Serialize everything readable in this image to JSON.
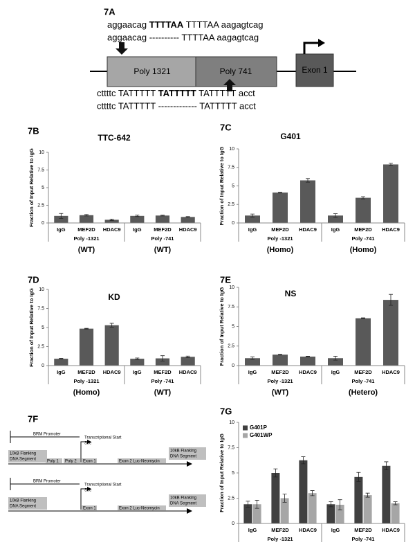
{
  "panel_a": {
    "label": "7A",
    "seq_top_1": [
      "aggaacag",
      "TTTTAA",
      "TTTTAA aagagtcag"
    ],
    "seq_top_2": "aggaacag ---------- TTTTAA aagagtcag",
    "boxes": [
      "Poly 1321",
      "Poly 741",
      "Exon 1"
    ],
    "seq_bottom_1": [
      "cttttc TATTTTT",
      "TATTTTT",
      "TATTTTT acct"
    ],
    "seq_bottom_2": "cttttc TATTTTT ------------- TATTTTT acct"
  },
  "panel_f": {
    "label": "7F",
    "constructs": [
      {
        "promoter": "BRM Promoter",
        "tss": [
          "Transcriptional Start",
          "Site"
        ],
        "left_flank": [
          "10kB Flanking",
          "DNA Segment"
        ],
        "segments": [
          "Poly 1",
          "Poly 2",
          "Exon 1",
          "Exon 2  Luc-Neomycin"
        ],
        "right_flank": [
          "10kB Flanking",
          "DNA Segment"
        ]
      },
      {
        "promoter": "BRM Promoter",
        "tss": [
          "Transcriptional Start",
          "Site"
        ],
        "left_flank": [
          "10kB Flanking",
          "DNA Segment"
        ],
        "segments": [
          "Exon 1",
          "Exon 2  Luc-Neomycin"
        ],
        "right_flank": [
          "10kB Flanking",
          "DNA Segment"
        ]
      }
    ]
  },
  "chart_data": [
    {
      "type": "bar",
      "panel": "7B",
      "title": "TTC-642",
      "ylabel": "Fraction of Input Relative to IgG",
      "categories": [
        "IgG",
        "MEF2D",
        "HDAC9",
        "IgG",
        "MEF2D",
        "HDAC9"
      ],
      "group_labels": [
        "Poly -1321",
        "Poly -741"
      ],
      "group_notes": [
        "(WT)",
        "(WT)"
      ],
      "series": [
        {
          "color": "#595959",
          "values": [
            1.0,
            1.1,
            0.45,
            1.0,
            1.05,
            0.85
          ],
          "errors": [
            0.35,
            0.1,
            0.1,
            0.1,
            0.05,
            0.05
          ]
        }
      ],
      "ylim": [
        0,
        10
      ],
      "yticks": [
        0,
        2.5,
        5,
        7.5,
        10
      ]
    },
    {
      "type": "bar",
      "panel": "7C",
      "title": "G401",
      "ylabel": "Fraction of Input Relative to IgG",
      "categories": [
        "IgG",
        "MEF2D",
        "HDAC9",
        "IgG",
        "MEF2D",
        "HDAC9"
      ],
      "group_labels": [
        "Poly -1321",
        "Poly -741"
      ],
      "group_notes": [
        "(Homo)",
        "(Homo)"
      ],
      "series": [
        {
          "color": "#595959",
          "values": [
            1.0,
            4.1,
            5.75,
            1.0,
            3.4,
            7.9
          ],
          "errors": [
            0.2,
            0.05,
            0.25,
            0.25,
            0.15,
            0.15
          ]
        }
      ],
      "ylim": [
        0,
        10
      ],
      "yticks": [
        0,
        2.5,
        5,
        7.5,
        10
      ]
    },
    {
      "type": "bar",
      "panel": "7D",
      "title": "KD",
      "ylabel": "Fraction of Input Relative to IgG",
      "categories": [
        "IgG",
        "MEF2D",
        "HDAC9",
        "IgG",
        "MEF2D",
        "HDAC9"
      ],
      "group_labels": [
        "Poly -1321",
        "Poly -741"
      ],
      "group_notes": [
        "(Homo)",
        "(WT)"
      ],
      "series": [
        {
          "color": "#595959",
          "values": [
            0.9,
            4.85,
            5.3,
            0.9,
            0.95,
            1.15
          ],
          "errors": [
            0.05,
            0.05,
            0.25,
            0.1,
            0.35,
            0.1
          ]
        }
      ],
      "ylim": [
        0,
        10
      ],
      "yticks": [
        0,
        2.5,
        5,
        7.5,
        10
      ]
    },
    {
      "type": "bar",
      "panel": "7E",
      "title": "NS",
      "ylabel": "Fraction of Input Relative to IgG",
      "categories": [
        "IgG",
        "MEF2D",
        "HDAC9",
        "IgG",
        "MEF2D",
        "HDAC9"
      ],
      "group_labels": [
        "Poly -1321",
        "Poly -741"
      ],
      "group_notes": [
        "(WT)",
        "(Hetero)"
      ],
      "series": [
        {
          "color": "#595959",
          "values": [
            0.95,
            1.4,
            1.15,
            0.95,
            6.05,
            8.4
          ],
          "errors": [
            0.15,
            0.05,
            0.05,
            0.25,
            0.05,
            0.7
          ]
        }
      ],
      "ylim": [
        0,
        10
      ],
      "yticks": [
        0,
        2.5,
        5,
        7.5,
        10
      ]
    },
    {
      "type": "bar",
      "panel": "7G",
      "ylabel": "Fraction of Input Relative to IgG",
      "categories": [
        "IgG",
        "MEF2D",
        "HDAC9",
        "IgG",
        "MEF2D",
        "HDAC9"
      ],
      "group_labels": [
        "Poly -1321",
        "Poly -741"
      ],
      "series": [
        {
          "name": "G401P",
          "color": "#404040",
          "values": [
            1.9,
            5.0,
            6.25,
            1.9,
            4.6,
            5.7
          ],
          "errors": [
            0.3,
            0.4,
            0.35,
            0.25,
            0.45,
            0.4
          ]
        },
        {
          "name": "G401WP",
          "color": "#a6a6a6",
          "values": [
            1.9,
            2.5,
            3.0,
            1.85,
            2.8,
            2.0
          ],
          "errors": [
            0.4,
            0.4,
            0.25,
            0.5,
            0.2,
            0.15
          ]
        }
      ],
      "ylim": [
        0,
        10
      ],
      "yticks": [
        0,
        2.5,
        5,
        7.5,
        10
      ]
    }
  ]
}
